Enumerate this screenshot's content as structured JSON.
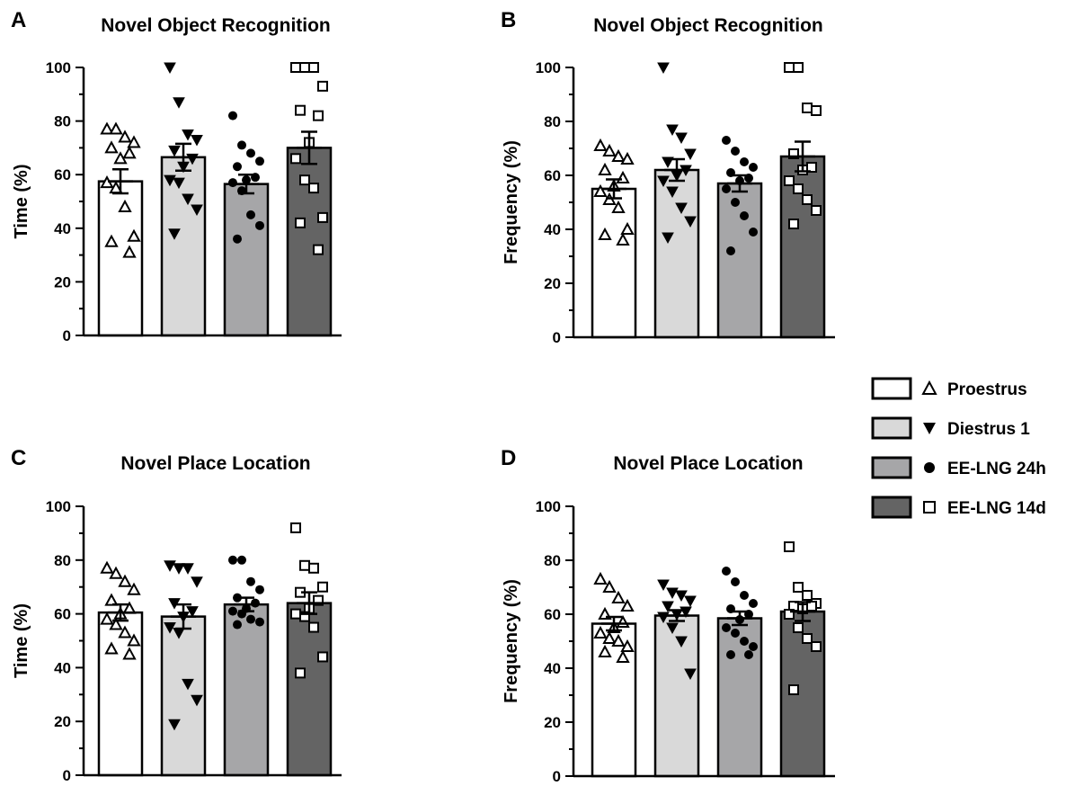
{
  "chart_data": [
    {
      "type": "bar",
      "panel": "A",
      "title": "Novel Object Recognition",
      "ylabel": "Time (%)",
      "xlabel": "",
      "ylim": [
        0,
        100
      ],
      "yticks": [
        "0",
        "20",
        "40",
        "60",
        "80",
        "100"
      ],
      "categories": [
        "Proestrus",
        "Diestrus 1",
        "EE-LNG 24h",
        "EE-LNG 14d"
      ],
      "values": [
        57.5,
        66.5,
        56.5,
        70
      ],
      "sem": [
        4.5,
        5,
        3.5,
        6
      ],
      "points": [
        [
          77,
          77,
          74,
          72,
          70,
          68,
          66,
          57,
          55,
          48,
          37,
          35,
          31
        ],
        [
          100,
          87,
          75,
          73,
          69,
          66,
          63,
          58,
          57,
          51,
          47,
          38
        ],
        [
          82,
          71,
          68,
          65,
          63,
          59,
          58,
          57,
          54,
          45,
          41,
          36
        ],
        [
          100,
          100,
          100,
          93,
          84,
          82,
          72,
          66,
          58,
          55,
          44,
          42,
          32
        ]
      ]
    },
    {
      "type": "bar",
      "panel": "B",
      "title": "Novel Object Recognition",
      "ylabel": "Frequency (%)",
      "xlabel": "",
      "ylim": [
        0,
        100
      ],
      "yticks": [
        "0",
        "20",
        "40",
        "60",
        "80",
        "100"
      ],
      "categories": [
        "Proestrus",
        "Diestrus 1",
        "EE-LNG 24h",
        "EE-LNG 14d"
      ],
      "values": [
        55,
        62,
        57,
        67
      ],
      "sem": [
        3.5,
        4,
        3,
        5.5
      ],
      "points": [
        [
          71,
          69,
          67,
          66,
          62,
          59,
          56,
          54,
          51,
          48,
          40,
          38,
          36
        ],
        [
          100,
          77,
          74,
          68,
          65,
          62,
          60,
          58,
          54,
          48,
          43,
          37
        ],
        [
          73,
          69,
          65,
          63,
          61,
          59,
          58,
          55,
          50,
          45,
          39,
          32
        ],
        [
          100,
          100,
          85,
          84,
          68,
          63,
          62,
          58,
          55,
          51,
          47,
          42
        ]
      ]
    },
    {
      "type": "bar",
      "panel": "C",
      "title": "Novel Place Location",
      "ylabel": "Time (%)",
      "xlabel": "",
      "ylim": [
        0,
        100
      ],
      "yticks": [
        "0",
        "20",
        "40",
        "60",
        "80",
        "100"
      ],
      "categories": [
        "Proestrus",
        "Diestrus 1",
        "EE-LNG 24h",
        "EE-LNG 14d"
      ],
      "values": [
        60.5,
        59,
        63.5,
        64
      ],
      "sem": [
        3,
        4.5,
        2.5,
        4
      ],
      "points": [
        [
          77,
          75,
          72,
          69,
          65,
          62,
          60,
          58,
          56,
          53,
          50,
          47,
          45
        ],
        [
          78,
          77,
          77,
          72,
          64,
          61,
          59,
          55,
          53,
          34,
          28,
          19
        ],
        [
          80,
          80,
          72,
          69,
          66,
          64,
          62,
          61,
          60,
          58,
          57,
          56
        ],
        [
          92,
          78,
          77,
          70,
          68,
          65,
          62,
          60,
          59,
          55,
          44,
          38
        ]
      ]
    },
    {
      "type": "bar",
      "panel": "D",
      "title": "Novel Place Location",
      "ylabel": "Frequency (%)",
      "xlabel": "",
      "ylim": [
        0,
        100
      ],
      "yticks": [
        "0",
        "20",
        "40",
        "60",
        "80",
        "100"
      ],
      "categories": [
        "Proestrus",
        "Diestrus 1",
        "EE-LNG 24h",
        "EE-LNG 14d"
      ],
      "values": [
        56.5,
        59.5,
        58.5,
        61
      ],
      "sem": [
        2.5,
        2,
        2.5,
        3.5
      ],
      "points": [
        [
          73,
          70,
          66,
          63,
          60,
          57,
          55,
          53,
          51,
          50,
          48,
          46,
          44
        ],
        [
          71,
          68,
          67,
          65,
          63,
          61,
          60,
          59,
          55,
          50,
          38
        ],
        [
          76,
          72,
          67,
          64,
          62,
          60,
          58,
          55,
          53,
          50,
          48,
          45,
          45
        ],
        [
          85,
          70,
          67,
          64,
          63,
          63,
          62,
          60,
          55,
          51,
          48,
          32
        ]
      ]
    }
  ],
  "legend": [
    {
      "label": "Proestrus",
      "bar_color": "#ffffff",
      "marker": "triangle-up-open-icon"
    },
    {
      "label": "Diestrus 1",
      "bar_color": "#d9d9d9",
      "marker": "triangle-down-filled-icon"
    },
    {
      "label": "EE-LNG 24h",
      "bar_color": "#a6a6a8",
      "marker": "circle-filled-icon"
    },
    {
      "label": "EE-LNG 14d",
      "bar_color": "#646464",
      "marker": "square-open-icon"
    }
  ],
  "bar_colors": [
    "#ffffff",
    "#d9d9d9",
    "#a6a6a8",
    "#646464"
  ],
  "markers": [
    "triangle-up-open",
    "triangle-down-filled",
    "circle-filled",
    "square-open"
  ]
}
